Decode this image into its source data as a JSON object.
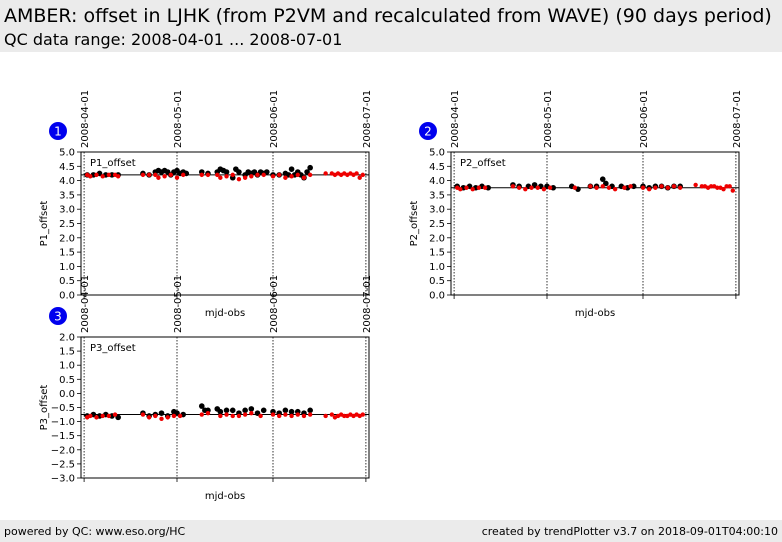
{
  "header": {
    "title": "AMBER: offset in LJHK (from P2VM and recalculated from WAVE) (90 days period)",
    "subtitle": "QC data range: 2008-04-01 ... 2008-07-01"
  },
  "footer": {
    "left": "powered by QC: www.eso.org/HC",
    "right": "created by trendPlotter v3.7 on 2018-09-01T04:00:10"
  },
  "colors": {
    "series_p2vm": "#000000",
    "series_wave": "#ee0000",
    "badge": "#0000ee"
  },
  "chart_data": [
    {
      "type": "scatter",
      "badge": "1",
      "label": "P1_offset",
      "xlabel": "mjd-obs",
      "ylabel": "P1_offset",
      "ylim": [
        0.0,
        5.0
      ],
      "yticks": [
        "0.0",
        "0.5",
        "1.0",
        "1.5",
        "2.0",
        "2.5",
        "3.0",
        "3.5",
        "4.0",
        "4.5",
        "5.0"
      ],
      "xlim": [
        "2008-03-31",
        "2008-07-02"
      ],
      "date_ticks": [
        "2008-04-01",
        "2008-05-01",
        "2008-06-01",
        "2008-07-01"
      ],
      "reference_line": 4.2,
      "series": [
        {
          "color": "black",
          "x": [
            "2008-04-02",
            "2008-04-04",
            "2008-04-06",
            "2008-04-08",
            "2008-04-10",
            "2008-04-12",
            "2008-04-20",
            "2008-04-22",
            "2008-04-24",
            "2008-04-25",
            "2008-04-26",
            "2008-04-27",
            "2008-04-28",
            "2008-04-29",
            "2008-04-30",
            "2008-05-01",
            "2008-05-02",
            "2008-05-03",
            "2008-05-04",
            "2008-05-09",
            "2008-05-11",
            "2008-05-14",
            "2008-05-15",
            "2008-05-16",
            "2008-05-17",
            "2008-05-19",
            "2008-05-20",
            "2008-05-21",
            "2008-05-23",
            "2008-05-24",
            "2008-05-25",
            "2008-05-26",
            "2008-05-27",
            "2008-05-28",
            "2008-05-29",
            "2008-05-30",
            "2008-06-01",
            "2008-06-03",
            "2008-06-05",
            "2008-06-06",
            "2008-06-07",
            "2008-06-08",
            "2008-06-09",
            "2008-06-10",
            "2008-06-11",
            "2008-06-12",
            "2008-06-13"
          ],
          "values": [
            4.2,
            4.2,
            4.25,
            4.2,
            4.2,
            4.2,
            4.25,
            4.2,
            4.3,
            4.35,
            4.3,
            4.35,
            4.3,
            4.2,
            4.3,
            4.35,
            4.25,
            4.3,
            4.25,
            4.3,
            4.25,
            4.3,
            4.4,
            4.35,
            4.3,
            4.1,
            4.4,
            4.3,
            4.2,
            4.3,
            4.25,
            4.3,
            4.2,
            4.3,
            4.25,
            4.3,
            4.2,
            4.2,
            4.25,
            4.2,
            4.4,
            4.2,
            4.3,
            4.2,
            4.1,
            4.3,
            4.45
          ]
        },
        {
          "color": "red",
          "x": [
            "2008-04-02",
            "2008-04-03",
            "2008-04-05",
            "2008-04-07",
            "2008-04-09",
            "2008-04-11",
            "2008-04-12",
            "2008-04-20",
            "2008-04-22",
            "2008-04-24",
            "2008-04-25",
            "2008-04-27",
            "2008-04-29",
            "2008-05-01",
            "2008-05-03",
            "2008-05-09",
            "2008-05-11",
            "2008-05-14",
            "2008-05-15",
            "2008-05-17",
            "2008-05-19",
            "2008-05-21",
            "2008-05-23",
            "2008-05-25",
            "2008-05-27",
            "2008-05-29",
            "2008-06-01",
            "2008-06-03",
            "2008-06-05",
            "2008-06-07",
            "2008-06-09",
            "2008-06-11",
            "2008-06-13",
            "2008-06-18",
            "2008-06-20",
            "2008-06-21",
            "2008-06-22",
            "2008-06-23",
            "2008-06-24",
            "2008-06-25",
            "2008-06-26",
            "2008-06-27",
            "2008-06-28",
            "2008-06-29",
            "2008-06-30"
          ],
          "values": [
            4.2,
            4.15,
            4.2,
            4.15,
            4.2,
            4.2,
            4.15,
            4.2,
            4.2,
            4.2,
            4.1,
            4.15,
            4.2,
            4.1,
            4.2,
            4.2,
            4.2,
            4.2,
            4.1,
            4.15,
            4.2,
            4.05,
            4.1,
            4.15,
            4.2,
            4.2,
            4.15,
            4.2,
            4.1,
            4.15,
            4.2,
            4.1,
            4.2,
            4.25,
            4.25,
            4.2,
            4.25,
            4.2,
            4.25,
            4.2,
            4.25,
            4.2,
            4.25,
            4.1,
            4.2
          ]
        }
      ]
    },
    {
      "type": "scatter",
      "badge": "2",
      "label": "P2_offset",
      "xlabel": "mjd-obs",
      "ylabel": "P2_offset",
      "ylim": [
        0.0,
        5.0
      ],
      "yticks": [
        "0.0",
        "0.5",
        "1.0",
        "1.5",
        "2.0",
        "2.5",
        "3.0",
        "3.5",
        "4.0",
        "4.5",
        "5.0"
      ],
      "xlim": [
        "2008-03-31",
        "2008-07-02"
      ],
      "date_ticks": [
        "2008-04-01",
        "2008-05-01",
        "2008-06-01",
        "2008-07-01"
      ],
      "reference_line": 3.75,
      "series": [
        {
          "color": "black",
          "x": [
            "2008-04-02",
            "2008-04-04",
            "2008-04-06",
            "2008-04-08",
            "2008-04-10",
            "2008-04-12",
            "2008-04-20",
            "2008-04-22",
            "2008-04-25",
            "2008-04-27",
            "2008-04-29",
            "2008-05-01",
            "2008-05-03",
            "2008-05-09",
            "2008-05-11",
            "2008-05-15",
            "2008-05-17",
            "2008-05-19",
            "2008-05-20",
            "2008-05-22",
            "2008-05-25",
            "2008-05-27",
            "2008-05-29",
            "2008-06-01",
            "2008-06-03",
            "2008-06-05",
            "2008-06-07",
            "2008-06-09",
            "2008-06-11",
            "2008-06-13"
          ],
          "values": [
            3.8,
            3.75,
            3.8,
            3.75,
            3.8,
            3.75,
            3.85,
            3.8,
            3.8,
            3.85,
            3.8,
            3.8,
            3.75,
            3.8,
            3.7,
            3.8,
            3.8,
            4.05,
            3.9,
            3.8,
            3.8,
            3.75,
            3.8,
            3.8,
            3.75,
            3.8,
            3.8,
            3.75,
            3.8,
            3.8
          ]
        },
        {
          "color": "red",
          "x": [
            "2008-04-02",
            "2008-04-03",
            "2008-04-05",
            "2008-04-07",
            "2008-04-09",
            "2008-04-11",
            "2008-04-20",
            "2008-04-22",
            "2008-04-24",
            "2008-04-26",
            "2008-04-28",
            "2008-04-30",
            "2008-05-02",
            "2008-05-10",
            "2008-05-15",
            "2008-05-17",
            "2008-05-19",
            "2008-05-21",
            "2008-05-23",
            "2008-05-26",
            "2008-05-28",
            "2008-06-01",
            "2008-06-03",
            "2008-06-05",
            "2008-06-07",
            "2008-06-09",
            "2008-06-11",
            "2008-06-13",
            "2008-06-18",
            "2008-06-20",
            "2008-06-21",
            "2008-06-22",
            "2008-06-23",
            "2008-06-24",
            "2008-06-25",
            "2008-06-26",
            "2008-06-27",
            "2008-06-28",
            "2008-06-29",
            "2008-06-30"
          ],
          "values": [
            3.75,
            3.7,
            3.75,
            3.7,
            3.75,
            3.75,
            3.8,
            3.75,
            3.7,
            3.75,
            3.75,
            3.7,
            3.75,
            3.75,
            3.8,
            3.75,
            3.8,
            3.75,
            3.7,
            3.75,
            3.8,
            3.75,
            3.7,
            3.75,
            3.8,
            3.75,
            3.8,
            3.75,
            3.85,
            3.8,
            3.8,
            3.75,
            3.8,
            3.8,
            3.75,
            3.75,
            3.7,
            3.8,
            3.8,
            3.65
          ]
        }
      ]
    },
    {
      "type": "scatter",
      "badge": "3",
      "label": "P3_offset",
      "xlabel": "mjd-obs",
      "ylabel": "P3_offset",
      "ylim": [
        -3.0,
        2.0
      ],
      "yticks": [
        "−3.0",
        "−2.5",
        "−2.0",
        "−1.5",
        "−1.0",
        "−0.5",
        "0.0",
        "0.5",
        "1.0",
        "1.5",
        "2.0"
      ],
      "xlim": [
        "2008-03-31",
        "2008-07-02"
      ],
      "date_ticks": [
        "2008-04-01",
        "2008-05-01",
        "2008-06-01",
        "2008-07-01"
      ],
      "reference_line": -0.75,
      "series": [
        {
          "color": "black",
          "x": [
            "2008-04-02",
            "2008-04-04",
            "2008-04-06",
            "2008-04-08",
            "2008-04-10",
            "2008-04-12",
            "2008-04-20",
            "2008-04-22",
            "2008-04-24",
            "2008-04-26",
            "2008-04-28",
            "2008-04-30",
            "2008-05-01",
            "2008-05-03",
            "2008-05-09",
            "2008-05-10",
            "2008-05-11",
            "2008-05-14",
            "2008-05-15",
            "2008-05-17",
            "2008-05-19",
            "2008-05-21",
            "2008-05-23",
            "2008-05-25",
            "2008-05-27",
            "2008-05-29",
            "2008-06-01",
            "2008-06-03",
            "2008-06-05",
            "2008-06-07",
            "2008-06-09",
            "2008-06-11",
            "2008-06-13"
          ],
          "values": [
            -0.8,
            -0.75,
            -0.8,
            -0.75,
            -0.8,
            -0.85,
            -0.7,
            -0.8,
            -0.75,
            -0.7,
            -0.8,
            -0.65,
            -0.7,
            -0.75,
            -0.45,
            -0.6,
            -0.6,
            -0.55,
            -0.65,
            -0.6,
            -0.6,
            -0.7,
            -0.6,
            -0.55,
            -0.7,
            -0.6,
            -0.65,
            -0.7,
            -0.6,
            -0.65,
            -0.65,
            -0.7,
            -0.6
          ]
        },
        {
          "color": "red",
          "x": [
            "2008-04-02",
            "2008-04-03",
            "2008-04-05",
            "2008-04-07",
            "2008-04-09",
            "2008-04-11",
            "2008-04-20",
            "2008-04-22",
            "2008-04-24",
            "2008-04-26",
            "2008-04-28",
            "2008-04-30",
            "2008-05-02",
            "2008-05-09",
            "2008-05-11",
            "2008-05-15",
            "2008-05-17",
            "2008-05-19",
            "2008-05-21",
            "2008-05-23",
            "2008-05-25",
            "2008-05-28",
            "2008-06-01",
            "2008-06-03",
            "2008-06-05",
            "2008-06-07",
            "2008-06-09",
            "2008-06-11",
            "2008-06-13",
            "2008-06-18",
            "2008-06-20",
            "2008-06-21",
            "2008-06-22",
            "2008-06-23",
            "2008-06-24",
            "2008-06-25",
            "2008-06-26",
            "2008-06-27",
            "2008-06-28",
            "2008-06-29",
            "2008-06-30"
          ],
          "values": [
            -0.85,
            -0.8,
            -0.85,
            -0.8,
            -0.8,
            -0.75,
            -0.75,
            -0.85,
            -0.8,
            -0.9,
            -0.85,
            -0.8,
            -0.8,
            -0.75,
            -0.7,
            -0.8,
            -0.75,
            -0.8,
            -0.8,
            -0.75,
            -0.7,
            -0.8,
            -0.75,
            -0.8,
            -0.75,
            -0.8,
            -0.75,
            -0.8,
            -0.75,
            -0.8,
            -0.75,
            -0.85,
            -0.8,
            -0.75,
            -0.8,
            -0.8,
            -0.75,
            -0.8,
            -0.75,
            -0.8,
            -0.75
          ]
        }
      ]
    }
  ]
}
